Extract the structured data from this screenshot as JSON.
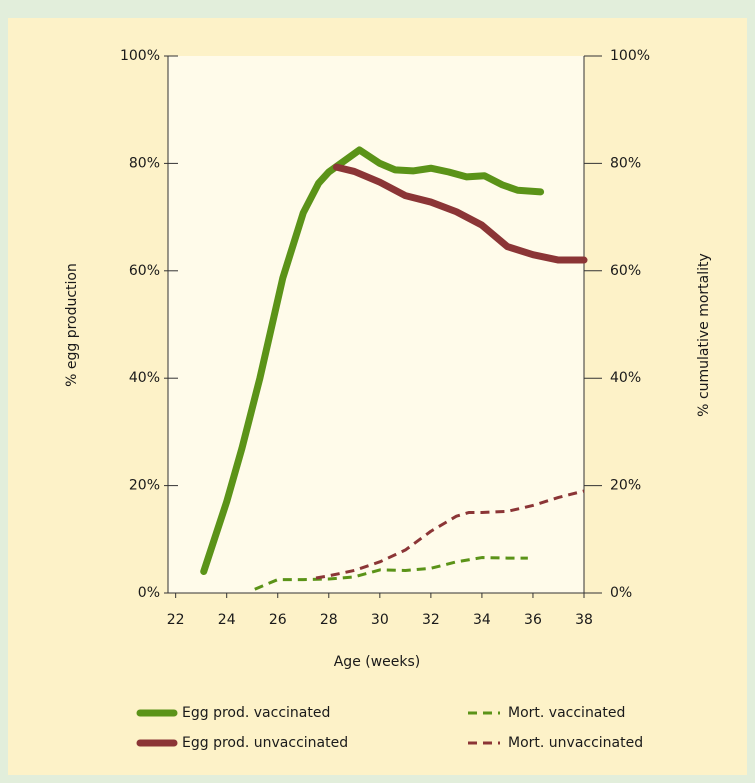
{
  "chart_data": {
    "type": "line",
    "xlabel": "Age (weeks)",
    "ylabel": "% egg production",
    "y2label": "% cumulative mortality",
    "xlim": [
      21.7,
      38
    ],
    "xticks": [
      22,
      24,
      26,
      28,
      30,
      32,
      34,
      36,
      38
    ],
    "ylim": [
      0,
      100
    ],
    "yticks": [
      {
        "value": 0,
        "label": "0%"
      },
      {
        "value": 20,
        "label": "20%"
      },
      {
        "value": 40,
        "label": "40%"
      },
      {
        "value": 60,
        "label": "60%"
      },
      {
        "value": 80,
        "label": "80%"
      },
      {
        "value": 100,
        "label": "100%"
      }
    ],
    "y2lim": [
      0,
      100
    ],
    "y2ticks": [
      {
        "value": 0,
        "label": "0%"
      },
      {
        "value": 20,
        "label": "20%"
      },
      {
        "value": 40,
        "label": "40%"
      },
      {
        "value": 60,
        "label": "60%"
      },
      {
        "value": 80,
        "label": "80%"
      },
      {
        "value": 100,
        "label": "100%"
      }
    ],
    "legend": "bottom",
    "series": [
      {
        "name": "Egg prod. vaccinated",
        "color": "#5b9318",
        "style": "solid",
        "x": [
          23.1,
          24.0,
          24.6,
          25.3,
          26.2,
          27.0,
          27.6,
          28.0,
          29.2,
          30.0,
          30.6,
          31.3,
          32.0,
          32.7,
          33.4,
          34.1,
          34.8,
          35.4,
          36.3
        ],
        "values": [
          4,
          17,
          27,
          40,
          58.7,
          70.8,
          76.3,
          78.4,
          82.5,
          80,
          78.8,
          78.6,
          79.1,
          78.4,
          77.5,
          77.7,
          76,
          75,
          74.7
        ]
      },
      {
        "name": "Egg prod. unvaccinated",
        "color": "#8b3536",
        "style": "solid",
        "x": [
          28.3,
          29.0,
          30.0,
          31.0,
          32.0,
          33.0,
          34.0,
          35.0,
          36.0,
          37.0,
          38.0
        ],
        "values": [
          79.3,
          78.5,
          76.5,
          74,
          72.8,
          71,
          68.5,
          64.5,
          63,
          62,
          62
        ]
      },
      {
        "name": "Mort. vaccinated",
        "color": "#5b9318",
        "style": "dashed",
        "axis": "y2",
        "x": [
          25.1,
          26.0,
          27.0,
          28.0,
          29.0,
          30.0,
          31.0,
          32.0,
          33.0,
          34.0,
          35.0,
          35.8
        ],
        "values": [
          0.7,
          2.5,
          2.5,
          2.6,
          3,
          4.3,
          4.2,
          4.6,
          5.8,
          6.6,
          6.5,
          6.5
        ]
      },
      {
        "name": "Mort. unvaccinated",
        "color": "#8b3536",
        "style": "dashed",
        "axis": "y2",
        "x": [
          27.5,
          28.0,
          29.0,
          30.0,
          31.0,
          32.0,
          33.0,
          33.5,
          34.0,
          35.0,
          36.0,
          37.0,
          38.0
        ],
        "values": [
          2.8,
          3.2,
          4.2,
          5.8,
          8,
          11.5,
          14.3,
          15,
          15,
          15.2,
          16.3,
          17.8,
          19
        ]
      }
    ]
  }
}
